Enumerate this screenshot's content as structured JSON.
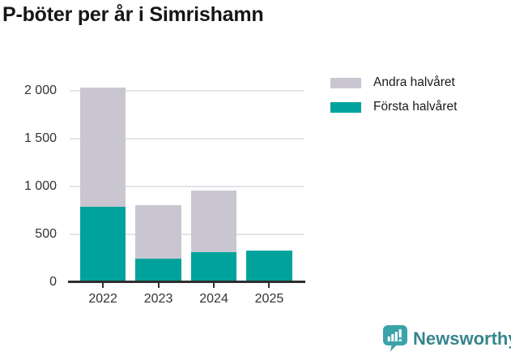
{
  "page": {
    "title": "P-böter per år i Simrishamn"
  },
  "chart_data": {
    "type": "bar",
    "stacked": true,
    "title": "P-böter per år i Simrishamn",
    "categories": [
      "2022",
      "2023",
      "2024",
      "2025"
    ],
    "series": [
      {
        "name": "Första halvåret",
        "color": "#00A39B",
        "values": [
          780,
          240,
          310,
          330
        ]
      },
      {
        "name": "Andra halvåret",
        "color": "#C9C6D1",
        "values": [
          1250,
          560,
          640,
          0
        ]
      }
    ],
    "totals": [
      2030,
      800,
      950,
      330
    ],
    "legend": [
      {
        "label": "Andra halvåret",
        "color": "#C9C6D1"
      },
      {
        "label": "Första halvåret",
        "color": "#00A39B"
      }
    ],
    "legend_position": "top-right",
    "y_ticks": [
      {
        "value": 0,
        "label": "0"
      },
      {
        "value": 500,
        "label": "500"
      },
      {
        "value": 1000,
        "label": "1 000"
      },
      {
        "value": 1500,
        "label": "1 500"
      },
      {
        "value": 2000,
        "label": "2 000"
      }
    ],
    "ylim": [
      0,
      2100
    ],
    "grid": true,
    "xlabel": "",
    "ylabel": ""
  },
  "footer": {
    "brand": "Newsworthy",
    "logo_icon": "newsworthy-speech-bubble-bar-chart-icon"
  },
  "colors": {
    "first_half": "#00A39B",
    "second_half": "#C9C6D1",
    "gridline": "#E4E3E8",
    "axis": "#2F2F2F",
    "brand_text": "#35858D",
    "brand_icon": "#3BA3A8"
  }
}
